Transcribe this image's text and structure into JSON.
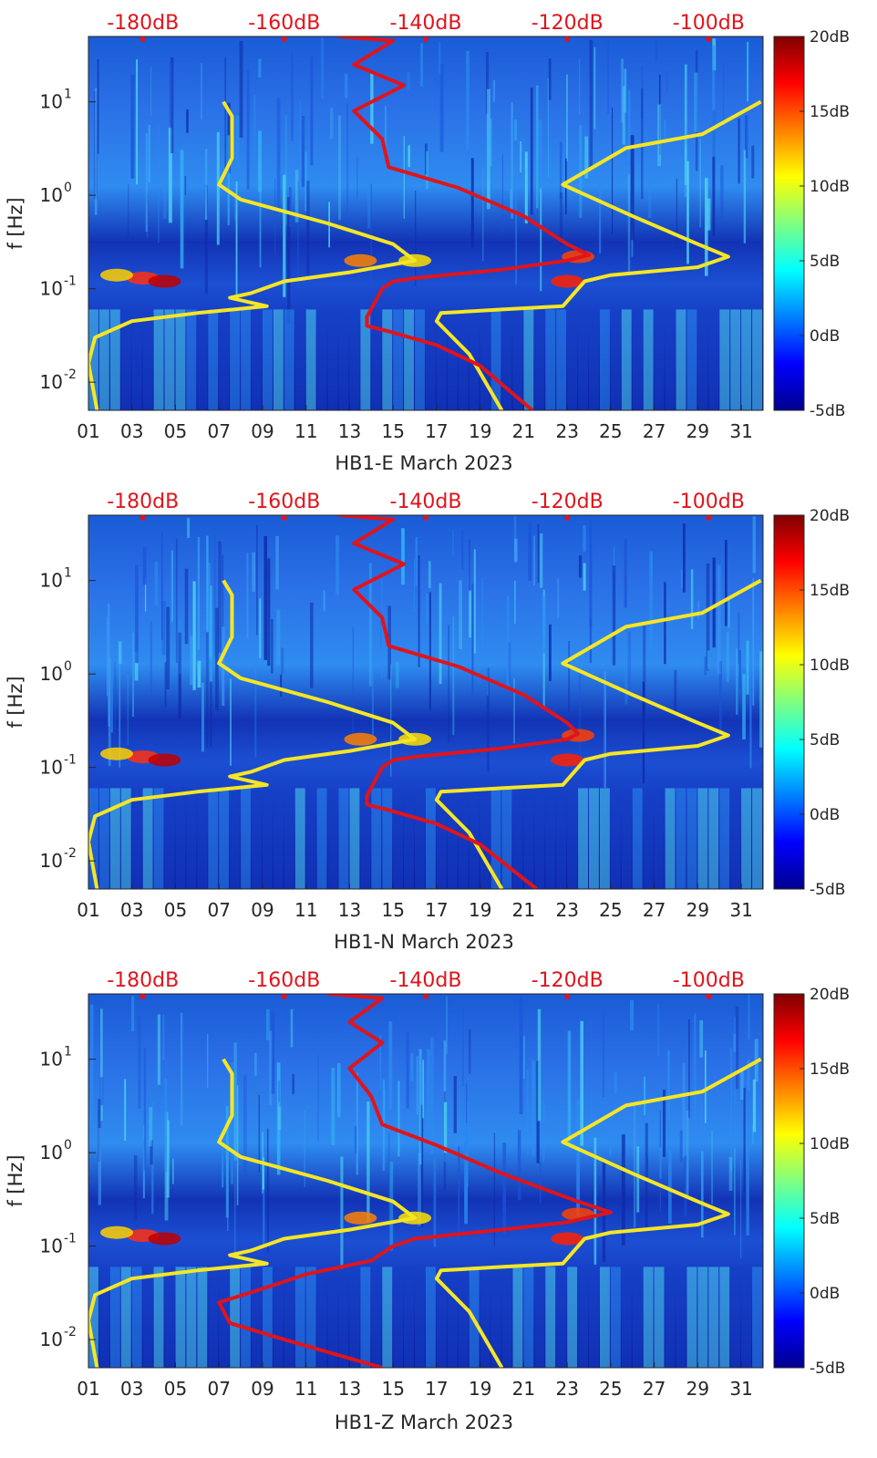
{
  "chart_data": [
    {
      "type": "heatmap",
      "station": "HB1-E",
      "xlabel": "HB1-E March 2023",
      "ylabel": "f [Hz]",
      "x_ticks": [
        "01",
        "03",
        "05",
        "07",
        "09",
        "11",
        "13",
        "15",
        "17",
        "19",
        "21",
        "23",
        "25",
        "27",
        "29",
        "31"
      ],
      "x_range_days": [
        1,
        32
      ],
      "y_scale": "log",
      "y_range_hz": [
        0.005,
        50
      ],
      "y_ticks": [
        {
          "base": "10",
          "exp": "1"
        },
        {
          "base": "10",
          "exp": "0"
        },
        {
          "base": "10",
          "exp": "-1"
        },
        {
          "base": "10",
          "exp": "-2"
        }
      ],
      "y_tick_values": [
        10,
        1,
        0.1,
        0.01
      ],
      "top_labels": [
        "-180dB",
        "-160dB",
        "-140dB",
        "-120dB",
        "-100dB"
      ],
      "top_label_days": [
        3.5,
        10,
        16.5,
        23,
        29.5
      ],
      "colorbar": {
        "ticks": [
          "20dB",
          "15dB",
          "10dB",
          "5dB",
          "0dB",
          "-5dB"
        ],
        "tick_values": [
          20,
          15,
          10,
          5,
          0,
          -5
        ],
        "range": [
          -5,
          20
        ],
        "colormap": [
          "#00008f",
          "#0000ff",
          "#0080ff",
          "#00ffff",
          "#80ff80",
          "#ffff00",
          "#ff8000",
          "#ff0000",
          "#800000"
        ]
      },
      "lines": [
        {
          "name": "yellow-model-left",
          "color": "#f5e625",
          "points": [
            [
              7.2,
              10
            ],
            [
              7.6,
              7
            ],
            [
              7.6,
              2.5
            ],
            [
              7,
              1.3
            ],
            [
              8,
              0.9
            ],
            [
              12,
              0.5
            ],
            [
              15,
              0.3
            ],
            [
              16,
              0.2
            ],
            [
              13,
              0.15
            ],
            [
              10,
              0.12
            ],
            [
              8.5,
              0.09
            ],
            [
              7.5,
              0.08
            ],
            [
              9.2,
              0.065
            ],
            [
              6,
              0.055
            ],
            [
              3,
              0.045
            ],
            [
              1.3,
              0.03
            ],
            [
              1,
              0.016
            ],
            [
              1.4,
              0.005
            ]
          ]
        },
        {
          "name": "yellow-model-right",
          "color": "#f5e625",
          "points": [
            [
              31.9,
              10
            ],
            [
              29.2,
              4.5
            ],
            [
              25.7,
              3.2
            ],
            [
              22.8,
              1.3
            ],
            [
              26,
              0.6
            ],
            [
              29,
              0.3
            ],
            [
              30.4,
              0.22
            ],
            [
              29,
              0.17
            ],
            [
              25,
              0.14
            ],
            [
              23.8,
              0.12
            ],
            [
              22.8,
              0.065
            ],
            [
              20,
              0.06
            ],
            [
              17.2,
              0.055
            ],
            [
              17,
              0.045
            ],
            [
              18.5,
              0.02
            ],
            [
              20,
              0.005
            ]
          ]
        },
        {
          "name": "red-psd",
          "color": "#e0141b",
          "points": [
            [
              12.5,
              50
            ],
            [
              15,
              45
            ],
            [
              13.2,
              25
            ],
            [
              15.5,
              15
            ],
            [
              13.2,
              8
            ],
            [
              14.5,
              4
            ],
            [
              14.8,
              2
            ],
            [
              18,
              1.2
            ],
            [
              21,
              0.6
            ],
            [
              23,
              0.3
            ],
            [
              24,
              0.23
            ],
            [
              23,
              0.2
            ],
            [
              20,
              0.16
            ],
            [
              16,
              0.13
            ],
            [
              15,
              0.12
            ],
            [
              14.5,
              0.1
            ],
            [
              13.8,
              0.05
            ],
            [
              13.8,
              0.04
            ],
            [
              14.8,
              0.035
            ],
            [
              17,
              0.025
            ],
            [
              19,
              0.015
            ],
            [
              21.4,
              0.005
            ]
          ]
        }
      ]
    },
    {
      "type": "heatmap",
      "station": "HB1-N",
      "xlabel": "HB1-N March 2023",
      "ylabel": "f [Hz]",
      "x_ticks": [
        "01",
        "03",
        "05",
        "07",
        "09",
        "11",
        "13",
        "15",
        "17",
        "19",
        "21",
        "23",
        "25",
        "27",
        "29",
        "31"
      ],
      "x_range_days": [
        1,
        32
      ],
      "y_scale": "log",
      "y_range_hz": [
        0.005,
        50
      ],
      "y_ticks": [
        {
          "base": "10",
          "exp": "1"
        },
        {
          "base": "10",
          "exp": "0"
        },
        {
          "base": "10",
          "exp": "-1"
        },
        {
          "base": "10",
          "exp": "-2"
        }
      ],
      "y_tick_values": [
        10,
        1,
        0.1,
        0.01
      ],
      "top_labels": [
        "-180dB",
        "-160dB",
        "-140dB",
        "-120dB",
        "-100dB"
      ],
      "top_label_days": [
        3.5,
        10,
        16.5,
        23,
        29.5
      ],
      "colorbar": {
        "ticks": [
          "20dB",
          "15dB",
          "10dB",
          "5dB",
          "0dB",
          "-5dB"
        ],
        "tick_values": [
          20,
          15,
          10,
          5,
          0,
          -5
        ],
        "range": [
          -5,
          20
        ],
        "colormap": [
          "#00008f",
          "#0000ff",
          "#0080ff",
          "#00ffff",
          "#80ff80",
          "#ffff00",
          "#ff8000",
          "#ff0000",
          "#800000"
        ]
      },
      "lines": [
        {
          "name": "yellow-model-left",
          "color": "#f5e625",
          "points": [
            [
              7.2,
              10
            ],
            [
              7.6,
              7
            ],
            [
              7.6,
              2.5
            ],
            [
              7,
              1.3
            ],
            [
              8,
              0.9
            ],
            [
              12,
              0.5
            ],
            [
              15,
              0.3
            ],
            [
              16,
              0.2
            ],
            [
              13,
              0.15
            ],
            [
              10,
              0.12
            ],
            [
              8.5,
              0.09
            ],
            [
              7.5,
              0.08
            ],
            [
              9.2,
              0.065
            ],
            [
              6,
              0.055
            ],
            [
              3,
              0.045
            ],
            [
              1.3,
              0.03
            ],
            [
              1,
              0.016
            ],
            [
              1.4,
              0.005
            ]
          ]
        },
        {
          "name": "yellow-model-right",
          "color": "#f5e625",
          "points": [
            [
              31.9,
              10
            ],
            [
              29.2,
              4.5
            ],
            [
              25.7,
              3.2
            ],
            [
              22.8,
              1.3
            ],
            [
              26,
              0.6
            ],
            [
              29,
              0.3
            ],
            [
              30.4,
              0.22
            ],
            [
              29,
              0.17
            ],
            [
              25,
              0.14
            ],
            [
              23.8,
              0.12
            ],
            [
              22.8,
              0.065
            ],
            [
              20,
              0.06
            ],
            [
              17.2,
              0.055
            ],
            [
              17,
              0.045
            ],
            [
              18.5,
              0.02
            ],
            [
              20,
              0.005
            ]
          ]
        },
        {
          "name": "red-psd",
          "color": "#e0141b",
          "points": [
            [
              12.5,
              50
            ],
            [
              15,
              45
            ],
            [
              13.2,
              25
            ],
            [
              15.5,
              15
            ],
            [
              13.2,
              8
            ],
            [
              14.5,
              4
            ],
            [
              14.8,
              2
            ],
            [
              18,
              1.2
            ],
            [
              21,
              0.6
            ],
            [
              23,
              0.3
            ],
            [
              23.5,
              0.23
            ],
            [
              23,
              0.2
            ],
            [
              20,
              0.16
            ],
            [
              16,
              0.13
            ],
            [
              15,
              0.12
            ],
            [
              14.5,
              0.1
            ],
            [
              13.8,
              0.05
            ],
            [
              13.8,
              0.04
            ],
            [
              14.8,
              0.035
            ],
            [
              17,
              0.025
            ],
            [
              19,
              0.015
            ],
            [
              21.6,
              0.005
            ]
          ]
        }
      ]
    },
    {
      "type": "heatmap",
      "station": "HB1-Z",
      "xlabel": "HB1-Z March 2023",
      "ylabel": "f [Hz]",
      "x_ticks": [
        "01",
        "03",
        "05",
        "07",
        "09",
        "11",
        "13",
        "15",
        "17",
        "19",
        "21",
        "23",
        "25",
        "27",
        "29",
        "31"
      ],
      "x_range_days": [
        1,
        32
      ],
      "y_scale": "log",
      "y_range_hz": [
        0.005,
        50
      ],
      "y_ticks": [
        {
          "base": "10",
          "exp": "1"
        },
        {
          "base": "10",
          "exp": "0"
        },
        {
          "base": "10",
          "exp": "-1"
        },
        {
          "base": "10",
          "exp": "-2"
        }
      ],
      "y_tick_values": [
        10,
        1,
        0.1,
        0.01
      ],
      "top_labels": [
        "-180dB",
        "-160dB",
        "-140dB",
        "-120dB",
        "-100dB"
      ],
      "top_label_days": [
        3.5,
        10,
        16.5,
        23,
        29.5
      ],
      "colorbar": {
        "ticks": [
          "20dB",
          "15dB",
          "10dB",
          "5dB",
          "0dB",
          "-5dB"
        ],
        "tick_values": [
          20,
          15,
          10,
          5,
          0,
          -5
        ],
        "range": [
          -5,
          20
        ],
        "colormap": [
          "#00008f",
          "#0000ff",
          "#0080ff",
          "#00ffff",
          "#80ff80",
          "#ffff00",
          "#ff8000",
          "#ff0000",
          "#800000"
        ]
      },
      "lines": [
        {
          "name": "yellow-model-left",
          "color": "#f5e625",
          "points": [
            [
              7.2,
              10
            ],
            [
              7.6,
              7
            ],
            [
              7.6,
              2.5
            ],
            [
              7,
              1.3
            ],
            [
              8,
              0.9
            ],
            [
              12,
              0.5
            ],
            [
              15,
              0.3
            ],
            [
              16,
              0.2
            ],
            [
              13,
              0.15
            ],
            [
              10,
              0.12
            ],
            [
              8.5,
              0.09
            ],
            [
              7.5,
              0.08
            ],
            [
              9.2,
              0.065
            ],
            [
              6,
              0.055
            ],
            [
              3,
              0.045
            ],
            [
              1.3,
              0.03
            ],
            [
              1,
              0.016
            ],
            [
              1.4,
              0.005
            ]
          ]
        },
        {
          "name": "yellow-model-right",
          "color": "#f5e625",
          "points": [
            [
              31.9,
              10
            ],
            [
              29.2,
              4.5
            ],
            [
              25.7,
              3.2
            ],
            [
              22.8,
              1.3
            ],
            [
              26,
              0.6
            ],
            [
              29,
              0.3
            ],
            [
              30.4,
              0.22
            ],
            [
              29,
              0.17
            ],
            [
              25,
              0.14
            ],
            [
              23.8,
              0.12
            ],
            [
              22.8,
              0.065
            ],
            [
              20,
              0.06
            ],
            [
              17.2,
              0.055
            ],
            [
              17,
              0.045
            ],
            [
              18.5,
              0.02
            ],
            [
              20,
              0.005
            ]
          ]
        },
        {
          "name": "red-psd",
          "color": "#e0141b",
          "points": [
            [
              12,
              50
            ],
            [
              14.5,
              45
            ],
            [
              13,
              25
            ],
            [
              14.5,
              15
            ],
            [
              13,
              8
            ],
            [
              14,
              4
            ],
            [
              14.5,
              2
            ],
            [
              17,
              1.2
            ],
            [
              20,
              0.6
            ],
            [
              23.5,
              0.3
            ],
            [
              25,
              0.23
            ],
            [
              23,
              0.18
            ],
            [
              20,
              0.15
            ],
            [
              16,
              0.12
            ],
            [
              15,
              0.1
            ],
            [
              14,
              0.07
            ],
            [
              11,
              0.05
            ],
            [
              9,
              0.035
            ],
            [
              7,
              0.025
            ],
            [
              7.5,
              0.015
            ],
            [
              10,
              0.01
            ],
            [
              14.5,
              0.005
            ]
          ]
        }
      ]
    }
  ]
}
